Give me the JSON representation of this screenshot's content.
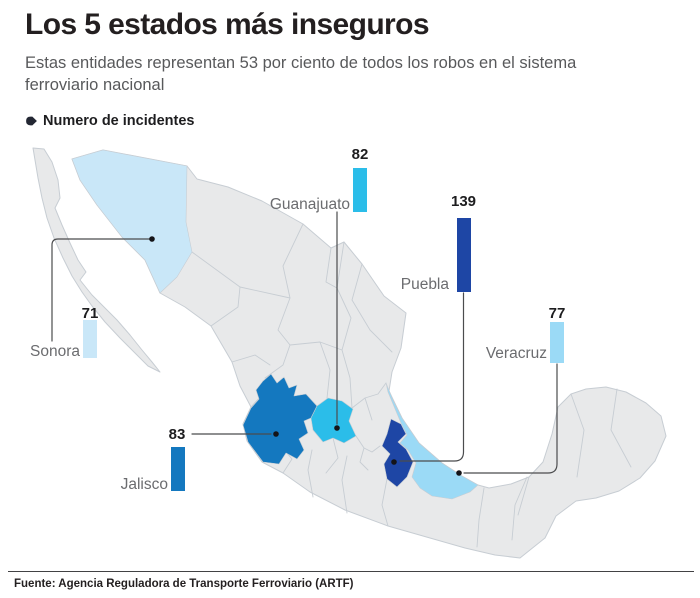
{
  "header": {
    "title": "Los 5 estados más inseguros",
    "subtitle": "Estas entidades representan 53 por ciento de todos los robos en el sistema ferroviario nacional",
    "legend_label": "Numero de incidentes",
    "legend_color": "#232733"
  },
  "footer": {
    "source": "Fuente: Agencia Reguladora de Transporte Ferroviario (ARTF)"
  },
  "map": {
    "land_fill": "#e8e9ea",
    "border_stroke": "#c7cdd3",
    "callout_line": "#4b4c4e",
    "dot_color": "#141418"
  },
  "chart_data": {
    "type": "bar",
    "subtype": "map-with-callout-bars",
    "title": "Los 5 estados más inseguros",
    "legend": "Numero de incidentes",
    "units": "incidentes",
    "categories": [
      "Sonora",
      "Jalisco",
      "Guanajuato",
      "Puebla",
      "Veracruz"
    ],
    "values": [
      71,
      83,
      82,
      139,
      77
    ],
    "series": [
      {
        "state": "Sonora",
        "value": 71,
        "color": "#c9e7f8"
      },
      {
        "state": "Jalisco",
        "value": 83,
        "color": "#1478bf"
      },
      {
        "state": "Guanajuato",
        "value": 82,
        "color": "#2bbde9"
      },
      {
        "state": "Puebla",
        "value": 139,
        "color": "#1e46a5"
      },
      {
        "state": "Veracruz",
        "value": 77,
        "color": "#9bdaf6"
      }
    ],
    "total_share_note": "53 por ciento de todos los robos",
    "ylim": [
      0,
      139
    ]
  }
}
